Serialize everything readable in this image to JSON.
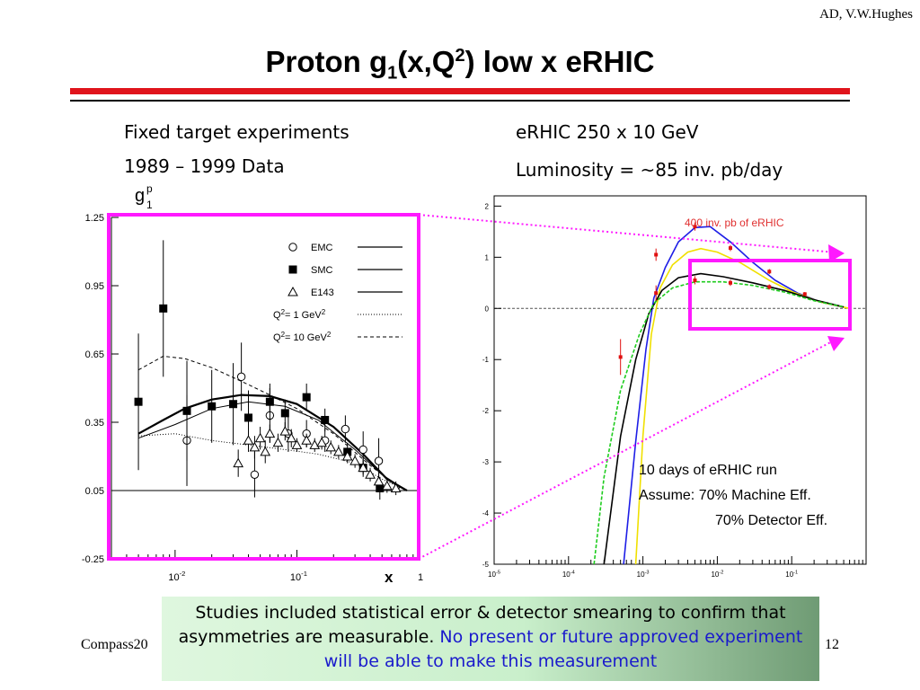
{
  "slide": {
    "author": "AD, V.W.Hughes",
    "title_main": "Proton g",
    "title_sub": "1",
    "title_mid": "(x,Q",
    "title_sup": "2",
    "title_end": ") low x eRHIC",
    "left_caption_1": "Fixed target experiments",
    "left_caption_2": "1989 – 1999 Data",
    "right_caption_1": "eRHIC 250 x 10 GeV",
    "right_caption_2": "Luminosity = ~85 inv. pb/day",
    "footer_left": "Compass20",
    "footer_right": "12",
    "note_black": "Studies included statistical error & detector smearing to confirm that asymmetries are measurable.",
    "note_blue": "No present or future approved experiment will be able to make this measurement"
  },
  "chart_data": [
    {
      "type": "scatter",
      "ylabel_main": "g",
      "ylabel_sup": "p",
      "ylabel_sub": "1",
      "xlabel": "x",
      "x_scale": "log",
      "xlim": [
        0.003,
        1
      ],
      "ylim": [
        -0.25,
        1.25
      ],
      "y_ticks": [
        "1.25",
        "0.95",
        "0.65",
        "0.35",
        "0.05",
        "-0.25"
      ],
      "x_ticks": [
        {
          "value": 0.01,
          "base": "10",
          "exp": "-2"
        },
        {
          "value": 0.1,
          "base": "10",
          "exp": "-1"
        },
        {
          "value": 1,
          "base": "1",
          "exp": ""
        }
      ],
      "legend_position": "top-right",
      "legend": [
        {
          "label": "EMC",
          "marker": "open-circle"
        },
        {
          "label": "SMC",
          "marker": "filled-square"
        },
        {
          "label": "E143",
          "marker": "open-triangle"
        },
        {
          "label_pre": "Q",
          "label_sup1": "2",
          "label_mid": "= 1 GeV",
          "label_sup2": "2",
          "line": "dotted"
        },
        {
          "label_pre": "Q",
          "label_sup1": "2",
          "label_mid": "= 10 GeV",
          "label_sup2": "2",
          "line": "dashed"
        }
      ],
      "series": [
        {
          "name": "EMC",
          "marker": "open-circle",
          "points": [
            [
              0.0125,
              0.27,
              0.2
            ],
            [
              0.035,
              0.55,
              0.15
            ],
            [
              0.045,
              0.12,
              0.1
            ],
            [
              0.06,
              0.38,
              0.12
            ],
            [
              0.085,
              0.3,
              0.08
            ],
            [
              0.12,
              0.3,
              0.06
            ],
            [
              0.17,
              0.27,
              0.05
            ],
            [
              0.25,
              0.32,
              0.06
            ],
            [
              0.35,
              0.23,
              0.08
            ],
            [
              0.47,
              0.18,
              0.1
            ]
          ]
        },
        {
          "name": "SMC",
          "marker": "filled-square",
          "points": [
            [
              0.005,
              0.44,
              0.3
            ],
            [
              0.008,
              0.85,
              0.3
            ],
            [
              0.0125,
              0.4,
              0.22
            ],
            [
              0.02,
              0.42,
              0.16
            ],
            [
              0.03,
              0.43,
              0.18
            ],
            [
              0.04,
              0.37,
              0.12
            ],
            [
              0.06,
              0.44,
              0.08
            ],
            [
              0.08,
              0.39,
              0.06
            ],
            [
              0.12,
              0.46,
              0.06
            ],
            [
              0.17,
              0.36,
              0.05
            ],
            [
              0.26,
              0.22,
              0.04
            ],
            [
              0.35,
              0.15,
              0.04
            ],
            [
              0.48,
              0.06,
              0.05
            ]
          ]
        },
        {
          "name": "E143",
          "marker": "open-triangle",
          "points": [
            [
              0.033,
              0.17,
              0.06
            ],
            [
              0.04,
              0.27,
              0.05
            ],
            [
              0.045,
              0.24,
              0.05
            ],
            [
              0.05,
              0.28,
              0.05
            ],
            [
              0.055,
              0.22,
              0.05
            ],
            [
              0.06,
              0.3,
              0.04
            ],
            [
              0.07,
              0.26,
              0.04
            ],
            [
              0.08,
              0.31,
              0.04
            ],
            [
              0.09,
              0.28,
              0.04
            ],
            [
              0.1,
              0.25,
              0.03
            ],
            [
              0.12,
              0.27,
              0.03
            ],
            [
              0.14,
              0.25,
              0.03
            ],
            [
              0.16,
              0.26,
              0.03
            ],
            [
              0.19,
              0.24,
              0.03
            ],
            [
              0.22,
              0.22,
              0.03
            ],
            [
              0.26,
              0.2,
              0.03
            ],
            [
              0.3,
              0.18,
              0.03
            ],
            [
              0.35,
              0.15,
              0.03
            ],
            [
              0.4,
              0.12,
              0.03
            ],
            [
              0.47,
              0.09,
              0.03
            ],
            [
              0.55,
              0.07,
              0.03
            ],
            [
              0.65,
              0.06,
              0.03
            ]
          ]
        }
      ],
      "curves": [
        {
          "name": "fit",
          "style": "bold",
          "points": [
            [
              0.005,
              0.3
            ],
            [
              0.008,
              0.36
            ],
            [
              0.012,
              0.41
            ],
            [
              0.02,
              0.45
            ],
            [
              0.035,
              0.47
            ],
            [
              0.06,
              0.465
            ],
            [
              0.1,
              0.43
            ],
            [
              0.2,
              0.33
            ],
            [
              0.35,
              0.21
            ],
            [
              0.55,
              0.1
            ],
            [
              0.8,
              0.05
            ]
          ]
        },
        {
          "name": "fit-2",
          "style": "solid",
          "points": [
            [
              0.005,
              0.28
            ],
            [
              0.01,
              0.34
            ],
            [
              0.02,
              0.41
            ],
            [
              0.04,
              0.44
            ],
            [
              0.08,
              0.42
            ],
            [
              0.15,
              0.36
            ],
            [
              0.3,
              0.23
            ],
            [
              0.5,
              0.12
            ],
            [
              0.8,
              0.05
            ]
          ]
        },
        {
          "name": "Q2 = 1 GeV2",
          "style": "dotted",
          "points": [
            [
              0.005,
              0.29
            ],
            [
              0.01,
              0.3
            ],
            [
              0.02,
              0.27
            ],
            [
              0.04,
              0.25
            ],
            [
              0.08,
              0.23
            ],
            [
              0.15,
              0.21
            ],
            [
              0.3,
              0.17
            ],
            [
              0.5,
              0.1
            ],
            [
              0.8,
              0.05
            ]
          ]
        },
        {
          "name": "Q2 = 10 GeV2",
          "style": "dashed",
          "points": [
            [
              0.005,
              0.58
            ],
            [
              0.008,
              0.64
            ],
            [
              0.012,
              0.63
            ],
            [
              0.02,
              0.59
            ],
            [
              0.035,
              0.53
            ],
            [
              0.06,
              0.47
            ],
            [
              0.1,
              0.41
            ],
            [
              0.2,
              0.3
            ],
            [
              0.4,
              0.16
            ],
            [
              0.7,
              0.06
            ]
          ]
        }
      ],
      "baseline_y": 0.05
    },
    {
      "type": "line",
      "annotation": "400 inv. pb of eRHIC",
      "x_scale": "log",
      "xlim": [
        1e-05,
        1
      ],
      "ylim": [
        -5,
        2.2
      ],
      "y_ticks": [
        "2",
        "1",
        "0",
        "-1",
        "-2",
        "-3",
        "-4",
        "-5"
      ],
      "x_ticks": [
        {
          "value": 1e-05,
          "base": "10",
          "exp": "-5"
        },
        {
          "value": 0.0001,
          "base": "10",
          "exp": "-4"
        },
        {
          "value": 0.001,
          "base": "10",
          "exp": "-3"
        },
        {
          "value": 0.01,
          "base": "10",
          "exp": "-2"
        },
        {
          "value": 0.1,
          "base": "10",
          "exp": "-1"
        }
      ],
      "run_note_1": "10 days of eRHIC run",
      "run_note_2": "Assume: 70% Machine Eff.",
      "run_note_3": "70% Detector Eff.",
      "curves": [
        {
          "name": "blue",
          "color": "#1e1ee6",
          "points": [
            [
              0.00055,
              -5
            ],
            [
              0.0008,
              -2.6
            ],
            [
              0.0011,
              -0.8
            ],
            [
              0.0014,
              0.2
            ],
            [
              0.002,
              0.8
            ],
            [
              0.003,
              1.3
            ],
            [
              0.005,
              1.58
            ],
            [
              0.008,
              1.6
            ],
            [
              0.015,
              1.3
            ],
            [
              0.03,
              0.9
            ],
            [
              0.06,
              0.55
            ],
            [
              0.12,
              0.3
            ],
            [
              0.25,
              0.12
            ],
            [
              0.5,
              0.02
            ]
          ]
        },
        {
          "name": "yellow",
          "color": "#f0e000",
          "points": [
            [
              0.0008,
              -5
            ],
            [
              0.001,
              -2.5
            ],
            [
              0.0013,
              -0.5
            ],
            [
              0.0017,
              0.4
            ],
            [
              0.0025,
              0.85
            ],
            [
              0.004,
              1.1
            ],
            [
              0.006,
              1.17
            ],
            [
              0.01,
              1.1
            ],
            [
              0.02,
              0.9
            ],
            [
              0.05,
              0.55
            ],
            [
              0.1,
              0.33
            ],
            [
              0.25,
              0.12
            ],
            [
              0.6,
              0.0
            ]
          ]
        },
        {
          "name": "black",
          "color": "#000000",
          "points": [
            [
              0.0003,
              -5
            ],
            [
              0.0005,
              -2.5
            ],
            [
              0.0008,
              -1.0
            ],
            [
              0.0012,
              -0.1
            ],
            [
              0.0018,
              0.35
            ],
            [
              0.003,
              0.6
            ],
            [
              0.006,
              0.68
            ],
            [
              0.012,
              0.62
            ],
            [
              0.03,
              0.5
            ],
            [
              0.08,
              0.35
            ],
            [
              0.2,
              0.17
            ],
            [
              0.5,
              0.03
            ]
          ]
        },
        {
          "name": "green-dashed",
          "color": "#1ecc1e",
          "dashed": true,
          "points": [
            [
              0.00022,
              -5
            ],
            [
              0.0003,
              -3.3
            ],
            [
              0.0005,
              -1.6
            ],
            [
              0.0009,
              -0.5
            ],
            [
              0.0014,
              0.1
            ],
            [
              0.0025,
              0.4
            ],
            [
              0.005,
              0.52
            ],
            [
              0.012,
              0.52
            ],
            [
              0.03,
              0.45
            ],
            [
              0.08,
              0.32
            ],
            [
              0.2,
              0.15
            ],
            [
              0.5,
              0.03
            ]
          ]
        }
      ],
      "points": [
        {
          "x": 0.0005,
          "y": -0.95,
          "err": 0.35
        },
        {
          "x": 0.0015,
          "y": 0.3,
          "err": 0.15
        },
        {
          "x": 0.0015,
          "y": 1.05,
          "err": 0.12
        },
        {
          "x": 0.005,
          "y": 0.55,
          "err": 0.08
        },
        {
          "x": 0.005,
          "y": 1.6,
          "err": 0.08
        },
        {
          "x": 0.015,
          "y": 0.5,
          "err": 0.06
        },
        {
          "x": 0.015,
          "y": 1.18,
          "err": 0.06
        },
        {
          "x": 0.05,
          "y": 0.42,
          "err": 0.05
        },
        {
          "x": 0.05,
          "y": 0.72,
          "err": 0.05
        },
        {
          "x": 0.15,
          "y": 0.28,
          "err": 0.04
        }
      ],
      "baseline_y": 0
    }
  ],
  "colors": {
    "magenta": "#ff19ff",
    "red_rule": "#e0141c",
    "data_red": "#e01010",
    "annotation_red": "#e03030",
    "blue_text": "#1a1acc"
  }
}
